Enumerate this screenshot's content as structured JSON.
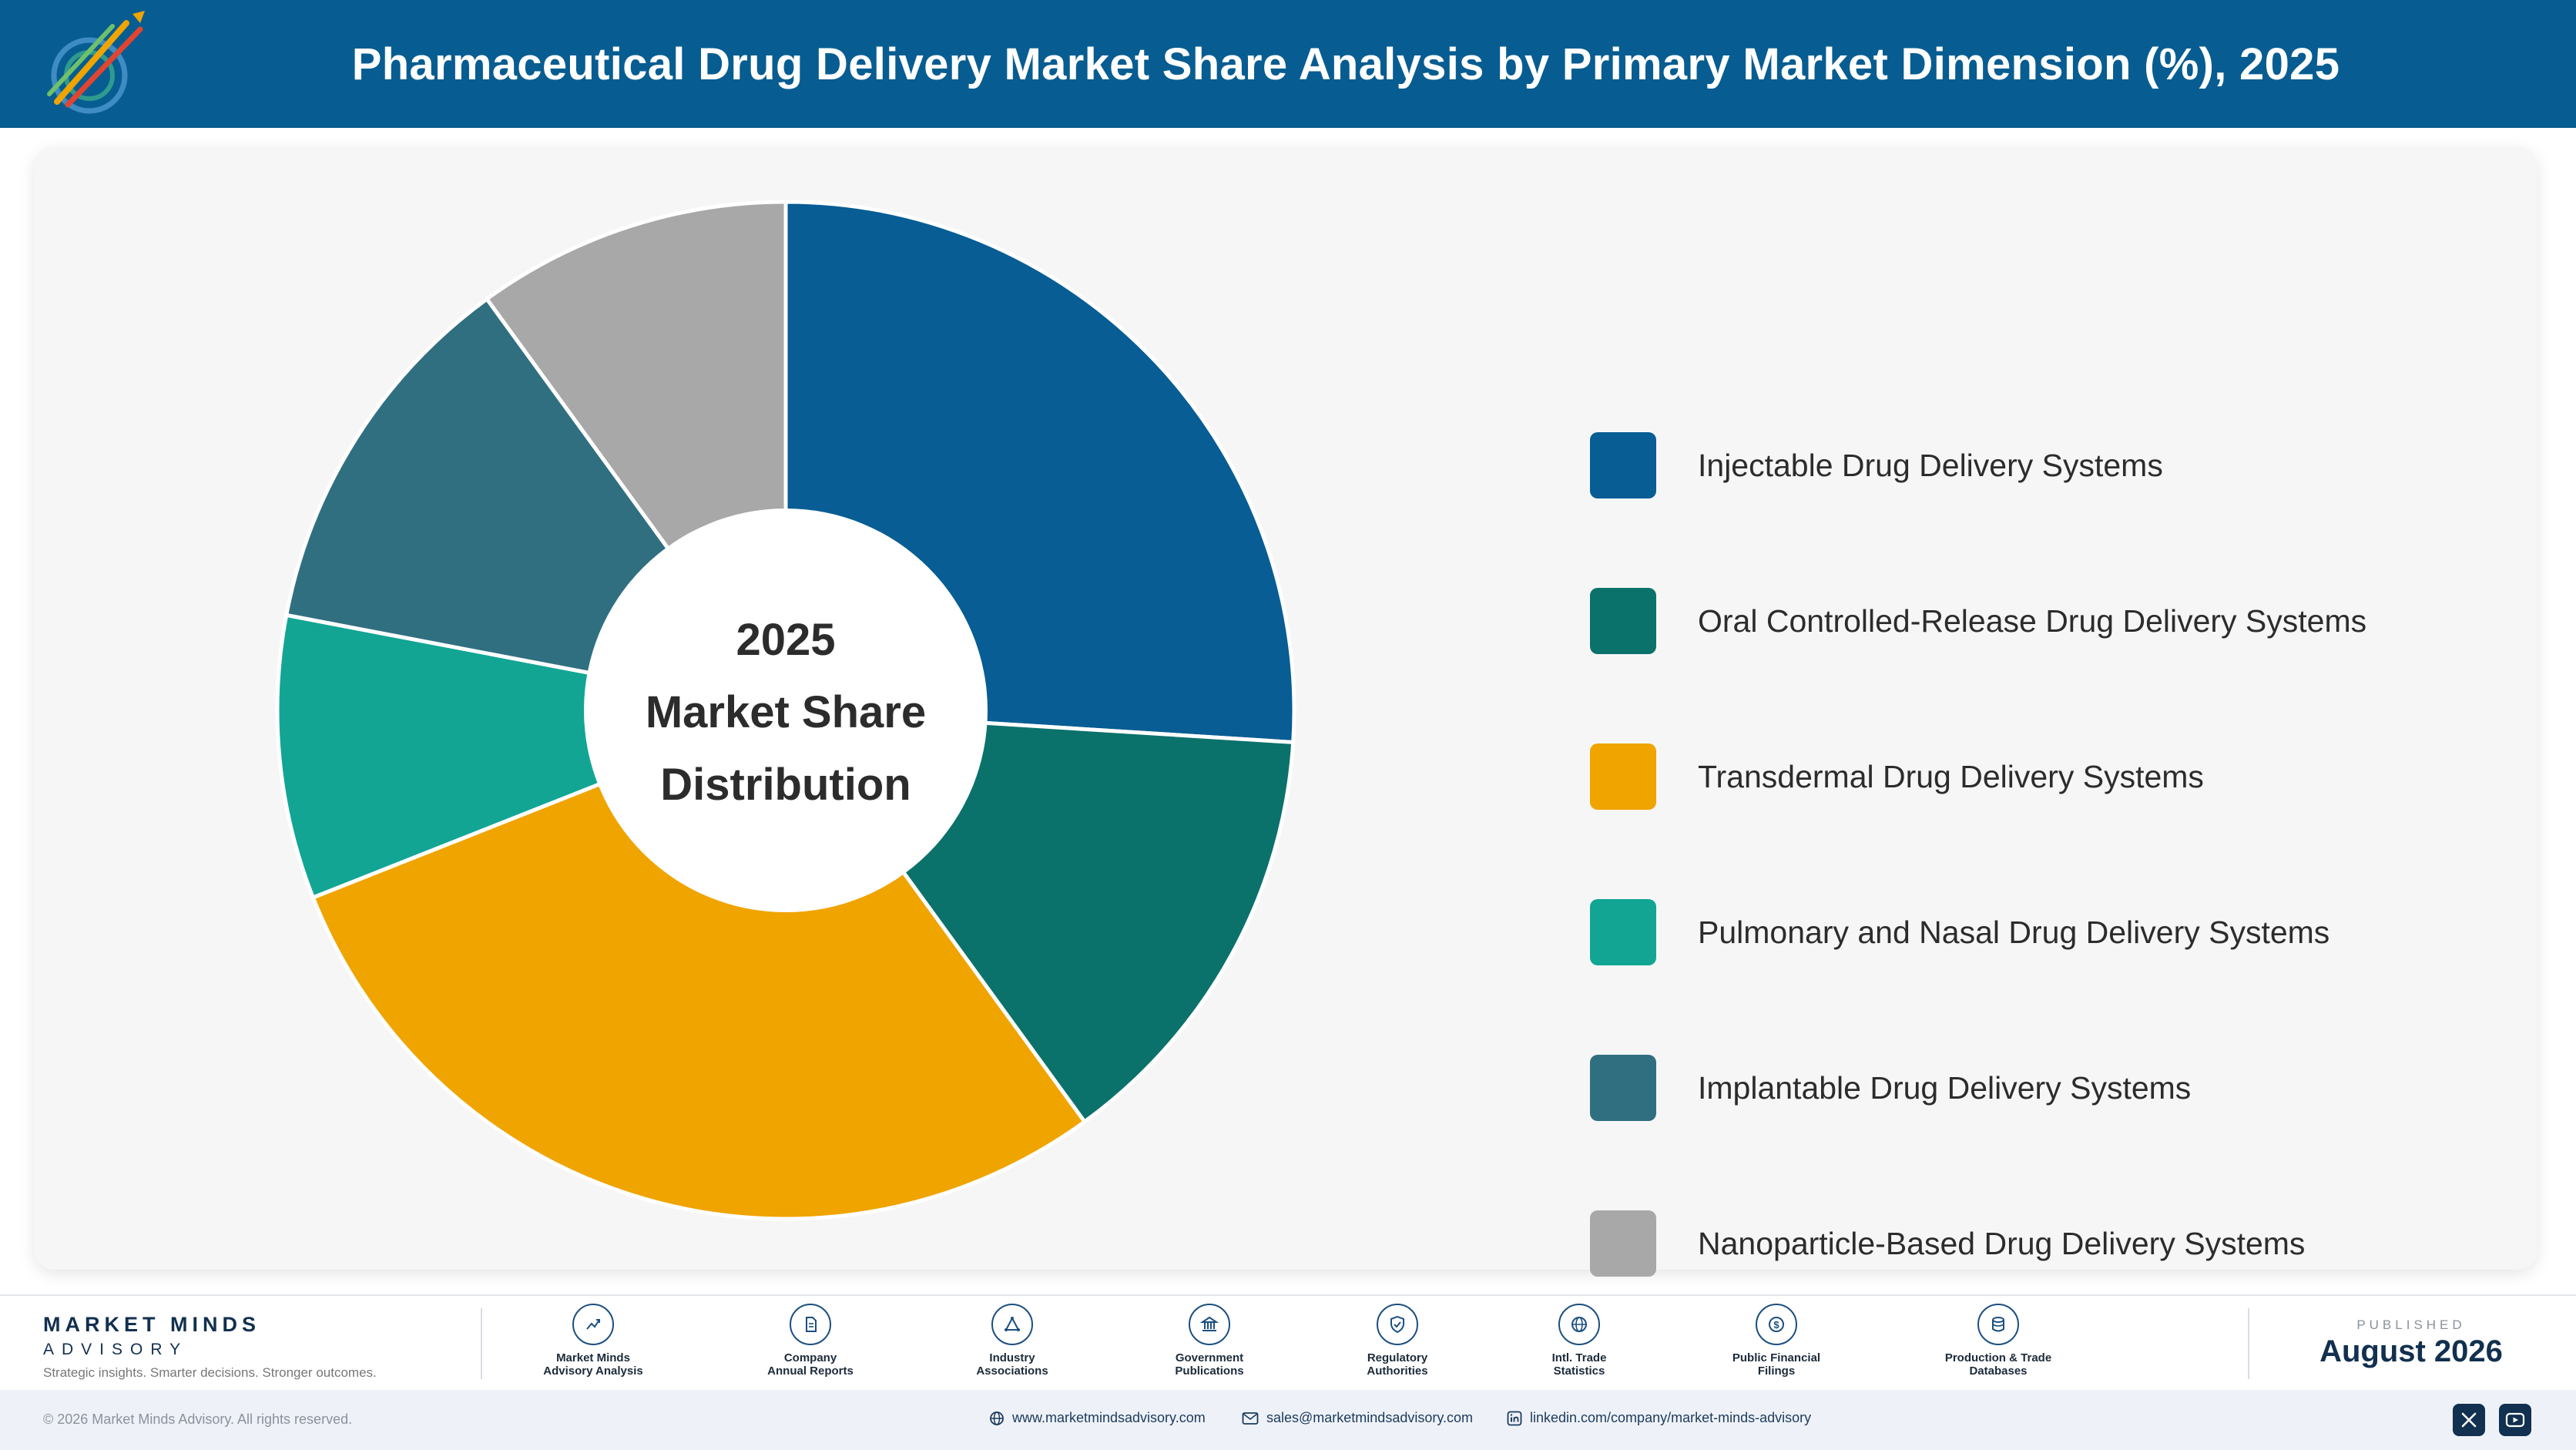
{
  "header": {
    "title": "Pharmaceutical Drug Delivery Market Share Analysis by Primary Market Dimension (%), 2025",
    "logo_icon": "market-minds-logo-icon"
  },
  "chart_data": {
    "type": "pie",
    "donut": true,
    "title": "Pharmaceutical Drug Delivery Market Share Analysis by Primary Market Dimension (%), 2025",
    "center_label": {
      "line1": "2025",
      "line2": "Market Share",
      "line3": "Distribution"
    },
    "legend_position": "right",
    "slices": [
      {
        "label": "Injectable Drug Delivery Systems",
        "value": 26,
        "color": "#075d94"
      },
      {
        "label": "Oral Controlled-Release Drug Delivery Systems",
        "value": 14,
        "color": "#0b716b"
      },
      {
        "label": "Transdermal Drug Delivery Systems",
        "value": 29,
        "color": "#f0a400"
      },
      {
        "label": "Pulmonary and Nasal Drug Delivery Systems",
        "value": 9,
        "color": "#12a594"
      },
      {
        "label": "Implantable Drug Delivery Systems",
        "value": 12,
        "color": "#306f80"
      },
      {
        "label": "Nanoparticle-Based Drug Delivery Systems",
        "value": 10,
        "color": "#a8a8a8"
      }
    ]
  },
  "footer": {
    "brand_name": "MARKET MINDS",
    "brand_sub": "ADVISORY",
    "tagline": "Strategic insights. Smarter decisions. Stronger outcomes.",
    "sources": [
      {
        "label": "Market Minds\nAdvisory Analysis",
        "icon": "trend-chart-icon"
      },
      {
        "label": "Company\nAnnual Reports",
        "icon": "document-icon"
      },
      {
        "label": "Industry\nAssociations",
        "icon": "network-icon"
      },
      {
        "label": "Government\nPublications",
        "icon": "government-building-icon"
      },
      {
        "label": "Regulatory\nAuthorities",
        "icon": "shield-check-icon"
      },
      {
        "label": "Intl. Trade\nStatistics",
        "icon": "globe-icon"
      },
      {
        "label": "Public Financial\nFilings",
        "icon": "dollar-coin-icon"
      },
      {
        "label": "Production & Trade\nDatabases",
        "icon": "database-icon"
      }
    ],
    "published_label": "PUBLISHED",
    "published_date": "August 2026"
  },
  "bottom_bar": {
    "copyright": "© 2026 Market Minds Advisory. All rights reserved.",
    "website": "www.marketmindsadvisory.com",
    "email": "sales@marketmindsadvisory.com",
    "linkedin": "linkedin.com/company/market-minds-advisory"
  }
}
